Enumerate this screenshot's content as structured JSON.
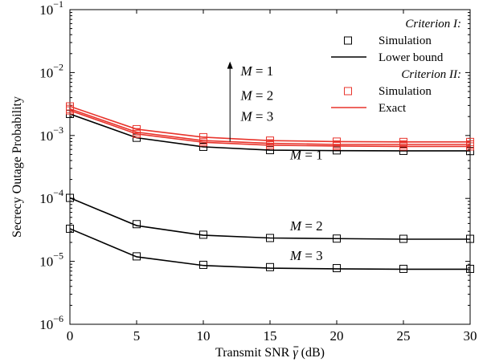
{
  "chart_data": {
    "type": "line",
    "xlabel_prefix": "Transmit SNR ",
    "xlabel_symbol": "γ",
    "xlabel_suffix": " (dB)",
    "ylabel": "Secrecy Outage Probability",
    "xlim": [
      0,
      30
    ],
    "ylim": [
      1e-06,
      0.1
    ],
    "yscale": "log",
    "grid": false,
    "x": [
      0,
      5,
      10,
      15,
      20,
      25,
      30
    ],
    "x_ticks": [
      "0",
      "5",
      "10",
      "15",
      "20",
      "25",
      "30"
    ],
    "y_tick_exponents": [
      "-6",
      "-5",
      "-4",
      "-3",
      "-2",
      "-1"
    ],
    "legend": {
      "placement": "top-right",
      "groups": [
        {
          "title": "Criterion I:",
          "entries": [
            {
              "label": "Simulation",
              "marker": "square",
              "color": "#000000"
            },
            {
              "label": "Lower bound",
              "line": "solid",
              "color": "#000000"
            }
          ]
        },
        {
          "title": "Criterion II:",
          "entries": [
            {
              "label": "Simulation",
              "marker": "square",
              "color": "#e8342c"
            },
            {
              "label": "Exact",
              "line": "solid",
              "color": "#e8342c"
            }
          ]
        }
      ]
    },
    "series": [
      {
        "group": "Criterion I",
        "kind": "line",
        "color": "#000000",
        "M": 1,
        "values": [
          0.0022,
          0.00092,
          0.00066,
          0.000585,
          0.000575,
          0.00057,
          0.00057
        ]
      },
      {
        "group": "Criterion I",
        "kind": "markers",
        "color": "#000000",
        "M": 1,
        "values": [
          0.0022,
          0.00092,
          0.00066,
          0.000585,
          0.00058,
          0.00057,
          0.000565
        ]
      },
      {
        "group": "Criterion I",
        "kind": "line",
        "color": "#000000",
        "M": 2,
        "values": [
          0.000102,
          3.7e-05,
          2.6e-05,
          2.35e-05,
          2.3e-05,
          2.25e-05,
          2.25e-05
        ]
      },
      {
        "group": "Criterion I",
        "kind": "markers",
        "color": "#000000",
        "M": 2,
        "values": [
          0.000102,
          3.9e-05,
          2.65e-05,
          2.35e-05,
          2.3e-05,
          2.28e-05,
          2.28e-05
        ]
      },
      {
        "group": "Criterion I",
        "kind": "line",
        "color": "#000000",
        "M": 3,
        "values": [
          3.3e-05,
          1.18e-05,
          8.6e-06,
          7.8e-06,
          7.6e-06,
          7.5e-06,
          7.5e-06
        ]
      },
      {
        "group": "Criterion I",
        "kind": "markers",
        "color": "#000000",
        "M": 3,
        "values": [
          3.3e-05,
          1.2e-05,
          8.8e-06,
          8.1e-06,
          7.8e-06,
          7.6e-06,
          7.6e-06
        ]
      },
      {
        "group": "Criterion II",
        "kind": "line",
        "color": "#e8342c",
        "M": 1,
        "values": [
          0.0029,
          0.00126,
          0.00094,
          0.00083,
          0.0008,
          0.00079,
          0.00079
        ]
      },
      {
        "group": "Criterion II",
        "kind": "markers",
        "color": "#e8342c",
        "M": 1,
        "values": [
          0.0029,
          0.00126,
          0.00094,
          0.00083,
          0.0008,
          0.00079,
          0.00079
        ]
      },
      {
        "group": "Criterion II",
        "kind": "line",
        "color": "#e8342c",
        "M": 2,
        "values": [
          0.00265,
          0.00113,
          0.00083,
          0.00075,
          0.00072,
          0.00072,
          0.00072
        ]
      },
      {
        "group": "Criterion II",
        "kind": "markers",
        "color": "#e8342c",
        "M": 2,
        "values": [
          0.00265,
          0.00113,
          0.00083,
          0.00075,
          0.00072,
          0.00072,
          0.00072
        ]
      },
      {
        "group": "Criterion II",
        "kind": "line",
        "color": "#e8342c",
        "M": 3,
        "values": [
          0.0025,
          0.00106,
          0.00078,
          0.0007,
          0.00068,
          0.00067,
          0.00067
        ]
      },
      {
        "group": "Criterion II",
        "kind": "markers",
        "color": "#e8342c",
        "M": 3,
        "values": [
          0.0025,
          0.00106,
          0.00078,
          0.0007,
          0.00068,
          0.00067,
          0.00067
        ]
      }
    ],
    "annotations": [
      {
        "text_var": "M",
        "text_value": "= 1",
        "x": 16.5,
        "y": 0.00042
      },
      {
        "text_var": "M",
        "text_value": "= 2",
        "x": 16.5,
        "y": 3.1e-05
      },
      {
        "text_var": "M",
        "text_value": "= 3",
        "x": 16.5,
        "y": 1.05e-05
      },
      {
        "text_var": "M",
        "text_value": "= 1",
        "x": 12.8,
        "y": 0.009
      },
      {
        "text_var": "M",
        "text_value": "= 2",
        "x": 12.8,
        "y": 0.0037
      },
      {
        "text_var": "M",
        "text_value": "= 3",
        "x": 12.8,
        "y": 0.0017
      }
    ],
    "arrow": {
      "direction": "up",
      "x": 12.0,
      "y_from": 0.0008,
      "y_to": 0.015
    }
  }
}
